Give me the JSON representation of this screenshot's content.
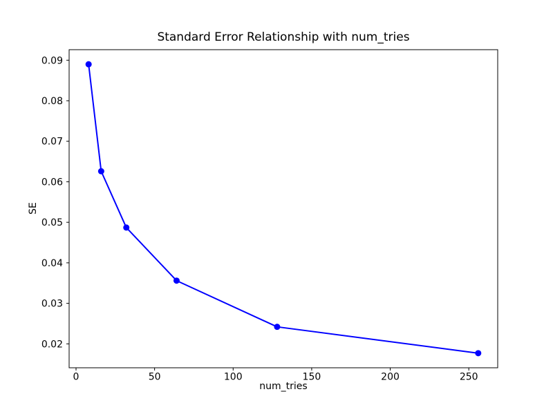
{
  "figure": {
    "background": "#ffffff"
  },
  "chart_data": {
    "type": "line",
    "title": "Standard Error Relationship with num_tries",
    "xlabel": "num_tries",
    "ylabel": "SE",
    "x": [
      8,
      16,
      32,
      64,
      128,
      256
    ],
    "y": [
      0.089,
      0.0626,
      0.0487,
      0.0356,
      0.0242,
      0.0177
    ],
    "series": [
      {
        "name": "SE",
        "color": "#0000ff",
        "marker": "circle",
        "line_width": 2,
        "marker_radius": 4.5
      }
    ],
    "xlim": [
      -4.4,
      268.4
    ],
    "ylim": [
      0.0141,
      0.0926
    ],
    "xticks": {
      "values": [
        0,
        50,
        100,
        150,
        200,
        250
      ],
      "labels": [
        "0",
        "50",
        "100",
        "150",
        "200",
        "250"
      ]
    },
    "yticks": {
      "values": [
        0.02,
        0.03,
        0.04,
        0.05,
        0.06,
        0.07,
        0.08,
        0.09
      ],
      "labels": [
        "0.02",
        "0.03",
        "0.04",
        "0.05",
        "0.06",
        "0.07",
        "0.08",
        "0.09"
      ]
    },
    "grid": false,
    "legend": null,
    "axes_color": "#000000",
    "background": "#ffffff"
  }
}
